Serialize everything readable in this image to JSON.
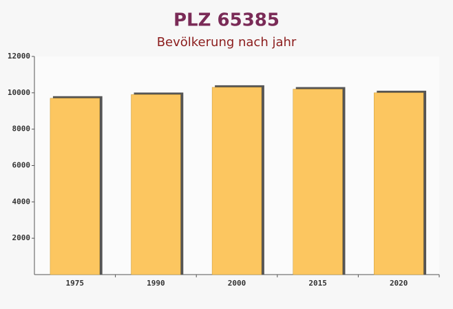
{
  "chart_data": {
    "type": "bar",
    "title": "PLZ 65385",
    "subtitle": "Bevölkerung nach jahr",
    "categories": [
      "1975",
      "1990",
      "2000",
      "2015",
      "2020"
    ],
    "values": [
      9700,
      9900,
      10300,
      10200,
      10000
    ],
    "color": "#fcc660",
    "ylim": [
      0,
      12000
    ],
    "yticks": [
      2000,
      4000,
      6000,
      8000,
      10000,
      12000
    ],
    "grid": false
  }
}
